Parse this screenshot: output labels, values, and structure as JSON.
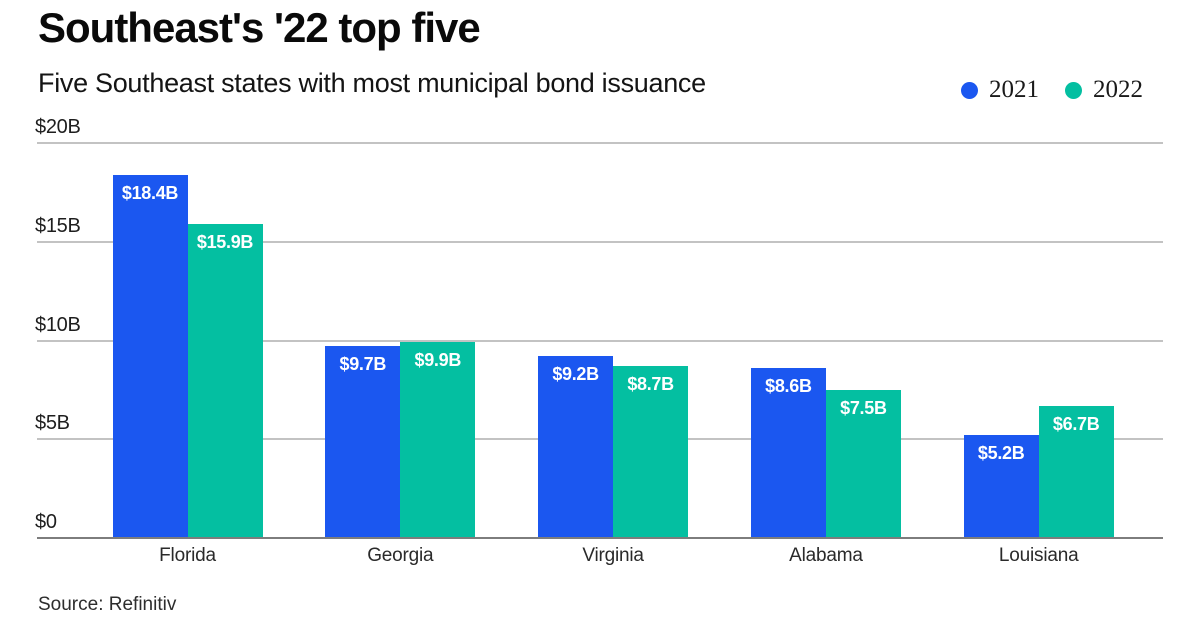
{
  "page": {
    "title": "Southeast's '22 top five",
    "subtitle": "Five Southeast states with most municipal bond issuance",
    "source": "Source: Refinitiv"
  },
  "colors": {
    "series_2021": "#1b57f0",
    "series_2022": "#04bfa1",
    "gridline": "#c3c3c3",
    "axis_line": "#7d7d7d",
    "bar_label_text": "#ffffff",
    "background": "#ffffff"
  },
  "chart_data": {
    "type": "bar",
    "title": "Southeast's '22 top five",
    "subtitle": "Five Southeast states with most municipal bond issuance",
    "categories": [
      "Florida",
      "Georgia",
      "Virginia",
      "Alabama",
      "Louisiana"
    ],
    "series": [
      {
        "name": "2021",
        "color": "#1b57f0",
        "values": [
          18.4,
          9.7,
          9.2,
          8.6,
          5.2
        ],
        "data_labels": [
          "$18.4B",
          "$9.7B",
          "$9.2B",
          "$8.6B",
          "$5.2B"
        ]
      },
      {
        "name": "2022",
        "color": "#04bfa1",
        "values": [
          15.9,
          9.9,
          8.7,
          7.5,
          6.7
        ],
        "data_labels": [
          "$15.9B",
          "$9.9B",
          "$8.7B",
          "$7.5B",
          "$6.7B"
        ]
      }
    ],
    "xlabel": "",
    "ylabel": "",
    "ylim": [
      0,
      20
    ],
    "yticks": [
      {
        "value": 20,
        "label": "$20B"
      },
      {
        "value": 15,
        "label": "$15B"
      },
      {
        "value": 10,
        "label": "$10B"
      },
      {
        "value": 5,
        "label": "$5B"
      },
      {
        "value": 0,
        "label": "$0"
      }
    ],
    "grid": true,
    "legend_position": "top-right",
    "source": "Source: Refinitiv"
  }
}
